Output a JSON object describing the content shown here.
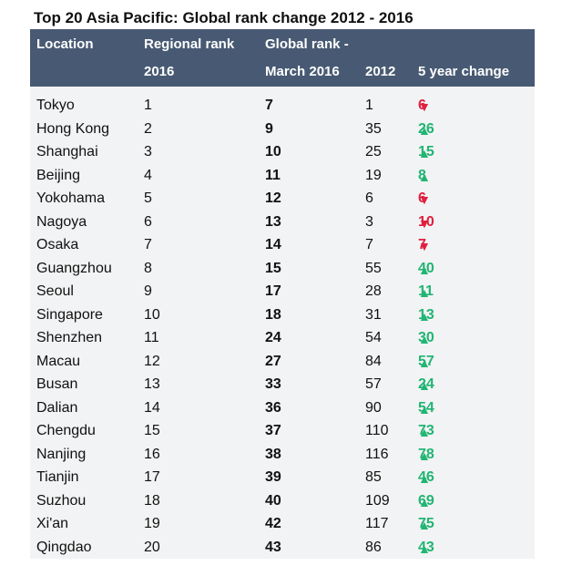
{
  "title": "Top 20 Asia Pacific: Global rank change 2012 - 2016",
  "colors": {
    "header_bg": "#485a73",
    "body_bg": "#f2f3f4",
    "up": "#21b573",
    "down": "#e0203f"
  },
  "header": {
    "location": "Location",
    "regional_rank_line1": "Regional rank",
    "regional_rank_line2": "2016",
    "global_rank_line1": "Global rank -",
    "global_rank_line2": "March 2016",
    "col_2012": "2012",
    "change": "5 year change"
  },
  "chart_data": {
    "type": "table",
    "title": "Top 20 Asia Pacific: Global rank change 2012 - 2016",
    "columns": [
      "Location",
      "Regional rank 2016",
      "Global rank - March 2016",
      "2012",
      "5 year change"
    ],
    "rows": [
      {
        "location": "Tokyo",
        "regional": "1",
        "global": "7",
        "y2012": "1",
        "dir": "down",
        "change": "6"
      },
      {
        "location": "Hong Kong",
        "regional": "2",
        "global": "9",
        "y2012": "35",
        "dir": "up",
        "change": "26"
      },
      {
        "location": "Shanghai",
        "regional": "3",
        "global": "10",
        "y2012": "25",
        "dir": "up",
        "change": "15"
      },
      {
        "location": "Beijing",
        "regional": "4",
        "global": "11",
        "y2012": "19",
        "dir": "up",
        "change": "8"
      },
      {
        "location": "Yokohama",
        "regional": "5",
        "global": "12",
        "y2012": "6",
        "dir": "down",
        "change": "6"
      },
      {
        "location": "Nagoya",
        "regional": "6",
        "global": "13",
        "y2012": "3",
        "dir": "down",
        "change": "10"
      },
      {
        "location": "Osaka",
        "regional": "7",
        "global": "14",
        "y2012": "7",
        "dir": "down",
        "change": "7"
      },
      {
        "location": "Guangzhou",
        "regional": "8",
        "global": "15",
        "y2012": "55",
        "dir": "up",
        "change": "40"
      },
      {
        "location": "Seoul",
        "regional": "9",
        "global": "17",
        "y2012": "28",
        "dir": "up",
        "change": "11"
      },
      {
        "location": "Singapore",
        "regional": "10",
        "global": "18",
        "y2012": "31",
        "dir": "up",
        "change": "13"
      },
      {
        "location": "Shenzhen",
        "regional": "11",
        "global": "24",
        "y2012": "54",
        "dir": "up",
        "change": "30"
      },
      {
        "location": "Macau",
        "regional": "12",
        "global": "27",
        "y2012": "84",
        "dir": "up",
        "change": "57"
      },
      {
        "location": "Busan",
        "regional": "13",
        "global": "33",
        "y2012": "57",
        "dir": "up",
        "change": "24"
      },
      {
        "location": "Dalian",
        "regional": "14",
        "global": "36",
        "y2012": "90",
        "dir": "up",
        "change": "54"
      },
      {
        "location": "Chengdu",
        "regional": "15",
        "global": "37",
        "y2012": "110",
        "dir": "up",
        "change": "73"
      },
      {
        "location": "Nanjing",
        "regional": "16",
        "global": "38",
        "y2012": "116",
        "dir": "up",
        "change": "78"
      },
      {
        "location": "Tianjin",
        "regional": "17",
        "global": "39",
        "y2012": "85",
        "dir": "up",
        "change": "46"
      },
      {
        "location": "Suzhou",
        "regional": "18",
        "global": "40",
        "y2012": "109",
        "dir": "up",
        "change": "69"
      },
      {
        "location": "Xi'an",
        "regional": "19",
        "global": "42",
        "y2012": "117",
        "dir": "up",
        "change": "75"
      },
      {
        "location": "Qingdao",
        "regional": "20",
        "global": "43",
        "y2012": "86",
        "dir": "up",
        "change": "43"
      }
    ]
  }
}
